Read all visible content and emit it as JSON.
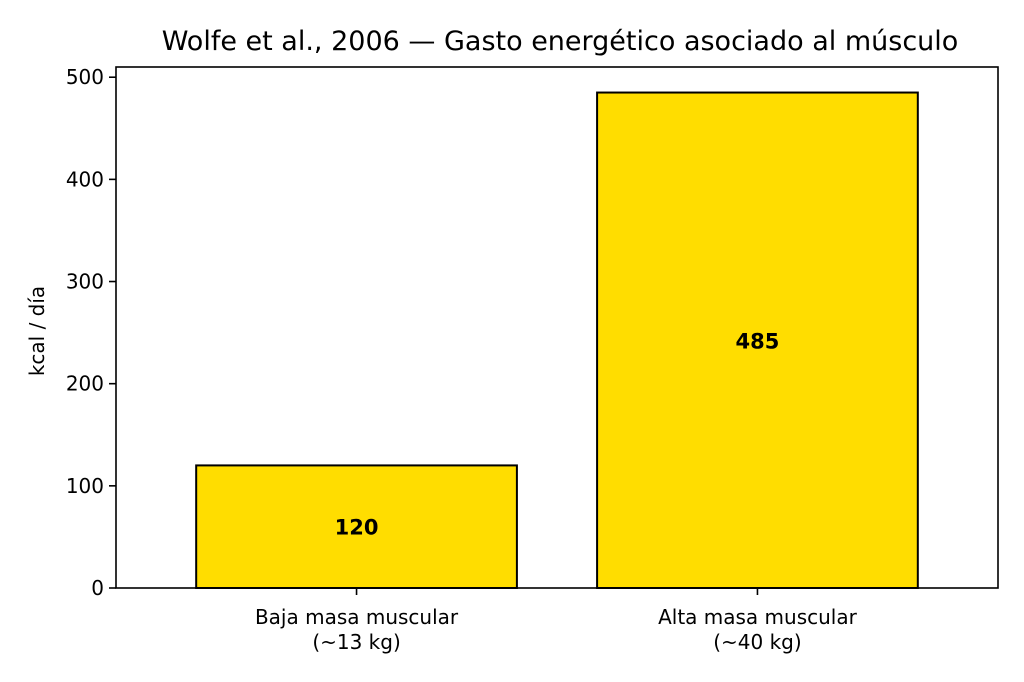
{
  "chart_data": {
    "type": "bar",
    "title": "Wolfe et al., 2006 — Gasto energético asociado al músculo",
    "xlabel": "",
    "ylabel": "kcal / día",
    "categories": [
      [
        "Baja masa muscular",
        "(~13 kg)"
      ],
      [
        "Alta masa muscular",
        "(~40 kg)"
      ]
    ],
    "values": [
      120,
      485
    ],
    "data_labels": [
      "120",
      "485"
    ],
    "ylim": [
      0,
      510
    ],
    "yticks": [
      0,
      100,
      200,
      300,
      400,
      500
    ],
    "ytick_labels": [
      "0",
      "100",
      "200",
      "300",
      "400",
      "500"
    ],
    "bar_color": "#FFDD00",
    "edge_color": "#000000",
    "grid": false,
    "legend": false
  }
}
